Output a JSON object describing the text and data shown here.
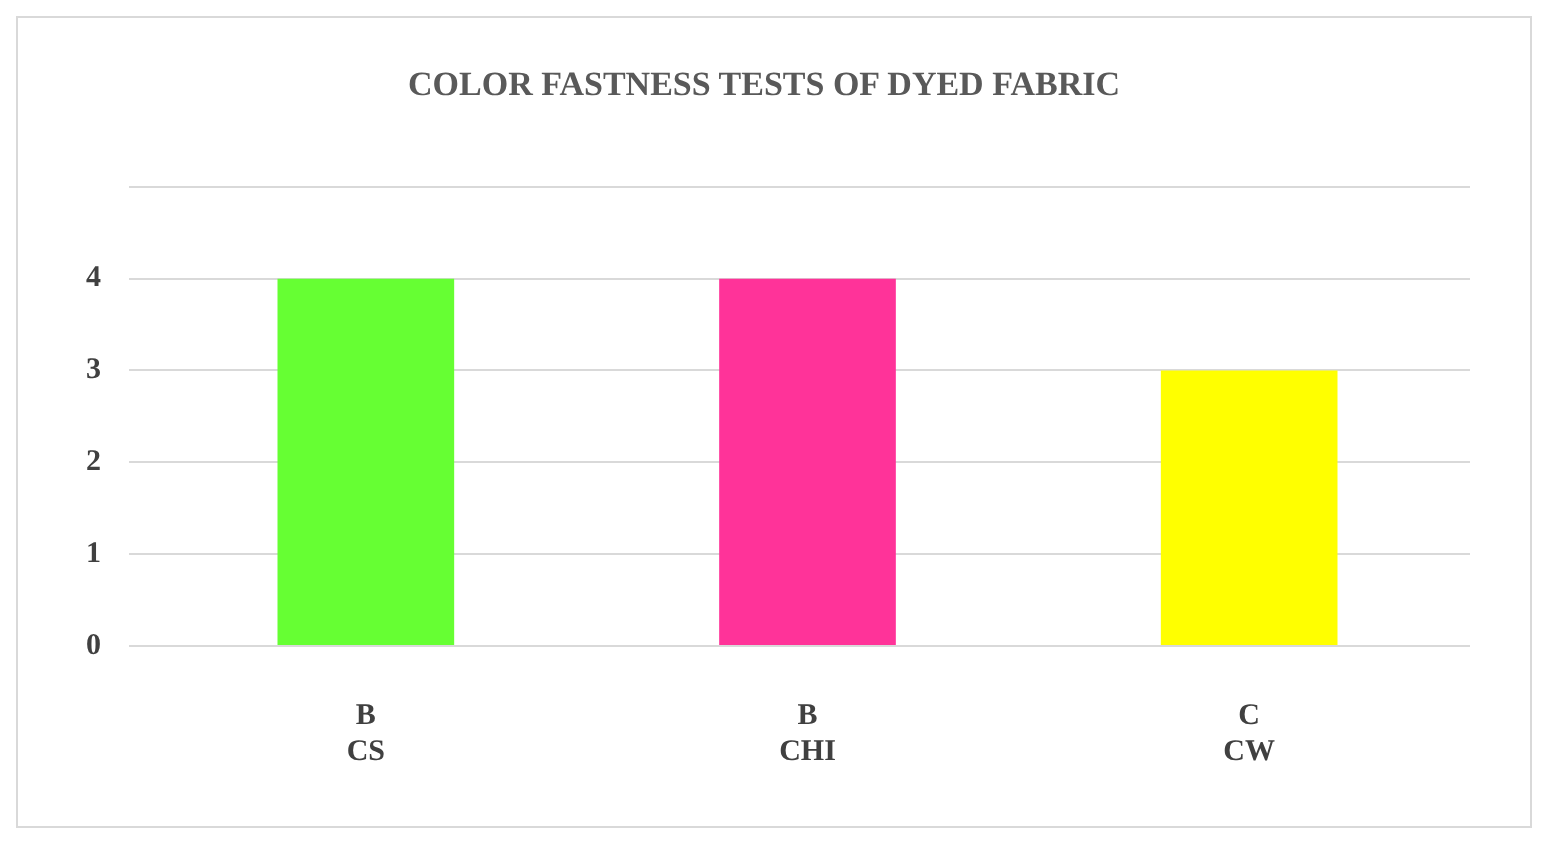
{
  "chart_data": {
    "type": "bar",
    "title": "COLOR FASTNESS TESTS OF DYED FABRIC",
    "categories": [
      "B\nCS",
      "B\nCHI",
      "C\nCW"
    ],
    "values": [
      4,
      4,
      3
    ],
    "colors": [
      "#66ff33",
      "#ff3399",
      "#ffff00"
    ],
    "ylim": [
      0,
      5
    ],
    "yticks": [
      0,
      1,
      2,
      3,
      4,
      {
        "value": 5,
        "label": null
      }
    ],
    "grid": "y",
    "legend": false
  }
}
